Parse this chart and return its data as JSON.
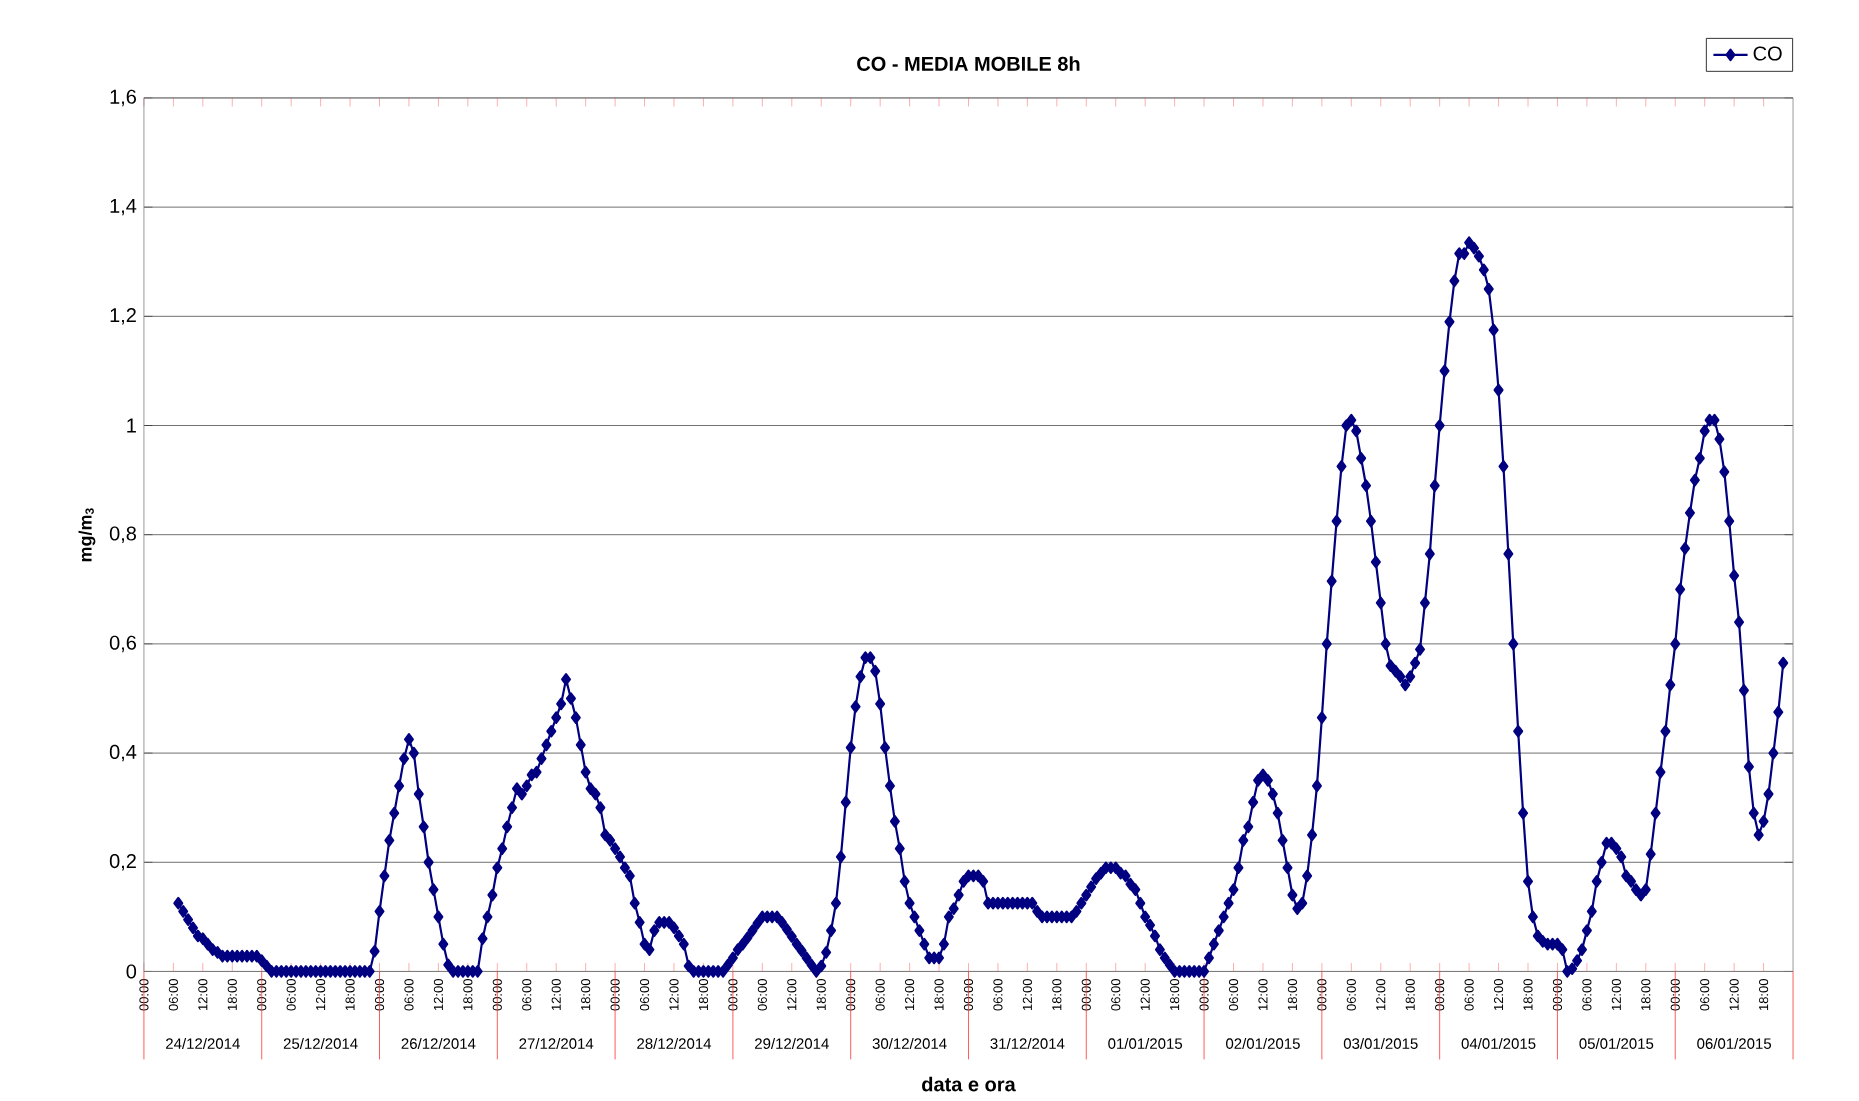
{
  "chart_data": {
    "type": "line",
    "title": "CO - MEDIA MOBILE 8h",
    "xlabel": "data e ora",
    "ylabel": "mg/m$_{3}$",
    "x": [
      "2014-12-24T07:00",
      "2014-12-24T08:00",
      "2014-12-24T09:00",
      "2014-12-24T10:00",
      "2014-12-24T11:00",
      "2014-12-24T12:00",
      "2014-12-24T13:00",
      "2014-12-24T14:00",
      "2014-12-24T15:00",
      "2014-12-24T16:00",
      "2014-12-24T17:00",
      "2014-12-24T18:00",
      "2014-12-24T19:00",
      "2014-12-24T20:00",
      "2014-12-24T21:00",
      "2014-12-24T22:00",
      "2014-12-24T23:00",
      "2014-12-25T00:00",
      "2014-12-25T01:00",
      "2014-12-25T02:00",
      "2014-12-25T03:00",
      "2014-12-25T04:00",
      "2014-12-25T05:00",
      "2014-12-25T06:00",
      "2014-12-25T07:00",
      "2014-12-25T08:00",
      "2014-12-25T09:00",
      "2014-12-25T10:00",
      "2014-12-25T11:00",
      "2014-12-25T12:00",
      "2014-12-25T13:00",
      "2014-12-25T14:00",
      "2014-12-25T15:00",
      "2014-12-25T16:00",
      "2014-12-25T17:00",
      "2014-12-25T18:00",
      "2014-12-25T19:00",
      "2014-12-25T20:00",
      "2014-12-25T21:00",
      "2014-12-25T22:00",
      "2014-12-25T23:00",
      "2014-12-26T00:00",
      "2014-12-26T01:00",
      "2014-12-26T02:00",
      "2014-12-26T03:00",
      "2014-12-26T04:00",
      "2014-12-26T05:00",
      "2014-12-26T06:00",
      "2014-12-26T07:00",
      "2014-12-26T08:00",
      "2014-12-26T09:00",
      "2014-12-26T10:00",
      "2014-12-26T11:00",
      "2014-12-26T12:00",
      "2014-12-26T13:00",
      "2014-12-26T14:00",
      "2014-12-26T15:00",
      "2014-12-26T16:00",
      "2014-12-26T17:00",
      "2014-12-26T18:00",
      "2014-12-26T19:00",
      "2014-12-26T20:00",
      "2014-12-26T21:00",
      "2014-12-26T22:00",
      "2014-12-26T23:00",
      "2014-12-27T00:00",
      "2014-12-27T01:00",
      "2014-12-27T02:00",
      "2014-12-27T03:00",
      "2014-12-27T04:00",
      "2014-12-27T05:00",
      "2014-12-27T06:00",
      "2014-12-27T07:00",
      "2014-12-27T08:00",
      "2014-12-27T09:00",
      "2014-12-27T10:00",
      "2014-12-27T11:00",
      "2014-12-27T12:00",
      "2014-12-27T13:00",
      "2014-12-27T14:00",
      "2014-12-27T15:00",
      "2014-12-27T16:00",
      "2014-12-27T17:00",
      "2014-12-27T18:00",
      "2014-12-27T19:00",
      "2014-12-27T20:00",
      "2014-12-27T21:00",
      "2014-12-27T22:00",
      "2014-12-27T23:00",
      "2014-12-28T00:00",
      "2014-12-28T01:00",
      "2014-12-28T02:00",
      "2014-12-28T03:00",
      "2014-12-28T04:00",
      "2014-12-28T05:00",
      "2014-12-28T06:00",
      "2014-12-28T07:00",
      "2014-12-28T08:00",
      "2014-12-28T09:00",
      "2014-12-28T10:00",
      "2014-12-28T11:00",
      "2014-12-28T12:00",
      "2014-12-28T13:00",
      "2014-12-28T14:00",
      "2014-12-28T15:00",
      "2014-12-28T16:00",
      "2014-12-28T17:00",
      "2014-12-28T18:00",
      "2014-12-28T19:00",
      "2014-12-28T20:00",
      "2014-12-28T21:00",
      "2014-12-28T22:00",
      "2014-12-28T23:00",
      "2014-12-29T00:00",
      "2014-12-29T01:00",
      "2014-12-29T02:00",
      "2014-12-29T03:00",
      "2014-12-29T04:00",
      "2014-12-29T05:00",
      "2014-12-29T06:00",
      "2014-12-29T07:00",
      "2014-12-29T08:00",
      "2014-12-29T09:00",
      "2014-12-29T10:00",
      "2014-12-29T11:00",
      "2014-12-29T12:00",
      "2014-12-29T13:00",
      "2014-12-29T14:00",
      "2014-12-29T15:00",
      "2014-12-29T16:00",
      "2014-12-29T17:00",
      "2014-12-29T18:00",
      "2014-12-29T19:00",
      "2014-12-29T20:00",
      "2014-12-29T21:00",
      "2014-12-29T22:00",
      "2014-12-29T23:00",
      "2014-12-30T00:00",
      "2014-12-30T01:00",
      "2014-12-30T02:00",
      "2014-12-30T03:00",
      "2014-12-30T04:00",
      "2014-12-30T05:00",
      "2014-12-30T06:00",
      "2014-12-30T07:00",
      "2014-12-30T08:00",
      "2014-12-30T09:00",
      "2014-12-30T10:00",
      "2014-12-30T11:00",
      "2014-12-30T12:00",
      "2014-12-30T13:00",
      "2014-12-30T14:00",
      "2014-12-30T15:00",
      "2014-12-30T16:00",
      "2014-12-30T17:00",
      "2014-12-30T18:00",
      "2014-12-30T19:00",
      "2014-12-30T20:00",
      "2014-12-30T21:00",
      "2014-12-30T22:00",
      "2014-12-30T23:00",
      "2014-12-31T00:00",
      "2014-12-31T01:00",
      "2014-12-31T02:00",
      "2014-12-31T03:00",
      "2014-12-31T04:00",
      "2014-12-31T05:00",
      "2014-12-31T06:00",
      "2014-12-31T07:00",
      "2014-12-31T08:00",
      "2014-12-31T09:00",
      "2014-12-31T10:00",
      "2014-12-31T11:00",
      "2014-12-31T12:00",
      "2014-12-31T13:00",
      "2014-12-31T14:00",
      "2014-12-31T15:00",
      "2014-12-31T16:00",
      "2014-12-31T17:00",
      "2014-12-31T18:00",
      "2014-12-31T19:00",
      "2014-12-31T20:00",
      "2014-12-31T21:00",
      "2014-12-31T22:00",
      "2014-12-31T23:00",
      "2015-01-01T00:00",
      "2015-01-01T01:00",
      "2015-01-01T02:00",
      "2015-01-01T03:00",
      "2015-01-01T04:00",
      "2015-01-01T05:00",
      "2015-01-01T06:00",
      "2015-01-01T07:00",
      "2015-01-01T08:00",
      "2015-01-01T09:00",
      "2015-01-01T10:00",
      "2015-01-01T11:00",
      "2015-01-01T12:00",
      "2015-01-01T13:00",
      "2015-01-01T14:00",
      "2015-01-01T15:00",
      "2015-01-01T16:00",
      "2015-01-01T17:00",
      "2015-01-01T18:00",
      "2015-01-01T19:00",
      "2015-01-01T20:00",
      "2015-01-01T21:00",
      "2015-01-01T22:00",
      "2015-01-01T23:00",
      "2015-01-02T00:00",
      "2015-01-02T01:00",
      "2015-01-02T02:00",
      "2015-01-02T03:00",
      "2015-01-02T04:00",
      "2015-01-02T05:00",
      "2015-01-02T06:00",
      "2015-01-02T07:00",
      "2015-01-02T08:00",
      "2015-01-02T09:00",
      "2015-01-02T10:00",
      "2015-01-02T11:00",
      "2015-01-02T12:00",
      "2015-01-02T13:00",
      "2015-01-02T14:00",
      "2015-01-02T15:00",
      "2015-01-02T16:00",
      "2015-01-02T17:00",
      "2015-01-02T18:00",
      "2015-01-02T19:00",
      "2015-01-02T20:00",
      "2015-01-02T21:00",
      "2015-01-02T22:00",
      "2015-01-02T23:00",
      "2015-01-03T00:00",
      "2015-01-03T01:00",
      "2015-01-03T02:00",
      "2015-01-03T03:00",
      "2015-01-03T04:00",
      "2015-01-03T05:00",
      "2015-01-03T06:00",
      "2015-01-03T07:00",
      "2015-01-03T08:00",
      "2015-01-03T09:00",
      "2015-01-03T10:00",
      "2015-01-03T11:00",
      "2015-01-03T12:00",
      "2015-01-03T13:00",
      "2015-01-03T14:00",
      "2015-01-03T15:00",
      "2015-01-03T16:00",
      "2015-01-03T17:00",
      "2015-01-03T18:00",
      "2015-01-03T19:00",
      "2015-01-03T20:00",
      "2015-01-03T21:00",
      "2015-01-03T22:00",
      "2015-01-03T23:00",
      "2015-01-04T00:00",
      "2015-01-04T01:00",
      "2015-01-04T02:00",
      "2015-01-04T03:00",
      "2015-01-04T04:00",
      "2015-01-04T05:00",
      "2015-01-04T06:00",
      "2015-01-04T07:00",
      "2015-01-04T08:00",
      "2015-01-04T09:00",
      "2015-01-04T10:00",
      "2015-01-04T11:00",
      "2015-01-04T12:00",
      "2015-01-04T13:00",
      "2015-01-04T14:00",
      "2015-01-04T15:00",
      "2015-01-04T16:00",
      "2015-01-04T17:00",
      "2015-01-04T18:00",
      "2015-01-04T19:00",
      "2015-01-04T20:00",
      "2015-01-04T21:00",
      "2015-01-04T22:00",
      "2015-01-04T23:00",
      "2015-01-05T00:00",
      "2015-01-05T01:00",
      "2015-01-05T02:00",
      "2015-01-05T03:00",
      "2015-01-05T04:00",
      "2015-01-05T05:00",
      "2015-01-05T06:00",
      "2015-01-05T07:00",
      "2015-01-05T08:00",
      "2015-01-05T09:00",
      "2015-01-05T10:00",
      "2015-01-05T11:00",
      "2015-01-05T12:00",
      "2015-01-05T13:00",
      "2015-01-05T14:00",
      "2015-01-05T15:00",
      "2015-01-05T16:00",
      "2015-01-05T17:00",
      "2015-01-05T18:00",
      "2015-01-05T19:00",
      "2015-01-05T20:00",
      "2015-01-05T21:00",
      "2015-01-05T22:00",
      "2015-01-05T23:00",
      "2015-01-06T00:00",
      "2015-01-06T01:00",
      "2015-01-06T02:00",
      "2015-01-06T03:00",
      "2015-01-06T04:00",
      "2015-01-06T05:00",
      "2015-01-06T06:00",
      "2015-01-06T07:00",
      "2015-01-06T08:00",
      "2015-01-06T09:00",
      "2015-01-06T10:00",
      "2015-01-06T11:00",
      "2015-01-06T12:00",
      "2015-01-06T13:00",
      "2015-01-06T14:00",
      "2015-01-06T15:00",
      "2015-01-06T16:00",
      "2015-01-06T17:00",
      "2015-01-06T18:00",
      "2015-01-06T19:00",
      "2015-01-06T20:00",
      "2015-01-06T21:00",
      "2015-01-06T22:00"
    ],
    "series": [
      {
        "name": "CO",
        "color": "#000080",
        "values": [
          0.125,
          0.11,
          0.095,
          0.08,
          0.065,
          0.06,
          0.05,
          0.04,
          0.035,
          0.028,
          0.028,
          0.028,
          0.028,
          0.028,
          0.028,
          0.028,
          0.028,
          0.02,
          0.01,
          0,
          0,
          0,
          0,
          0,
          0,
          0,
          0,
          0,
          0,
          0,
          0,
          0,
          0,
          0,
          0,
          0,
          0,
          0,
          0,
          0,
          0.037,
          0.11,
          0.175,
          0.24,
          0.29,
          0.34,
          0.39,
          0.425,
          0.4,
          0.325,
          0.265,
          0.2,
          0.15,
          0.1,
          0.05,
          0.012,
          0,
          0,
          0,
          0,
          0,
          0,
          0.06,
          0.1,
          0.14,
          0.19,
          0.225,
          0.265,
          0.3,
          0.335,
          0.325,
          0.34,
          0.36,
          0.365,
          0.39,
          0.415,
          0.44,
          0.465,
          0.49,
          0.535,
          0.5,
          0.465,
          0.415,
          0.365,
          0.335,
          0.325,
          0.3,
          0.25,
          0.24,
          0.225,
          0.21,
          0.19,
          0.175,
          0.125,
          0.09,
          0.05,
          0.04,
          0.075,
          0.09,
          0.09,
          0.09,
          0.08,
          0.065,
          0.05,
          0.01,
          0,
          0,
          0,
          0,
          0,
          0,
          0,
          0.012,
          0.025,
          0.04,
          0.05,
          0.062,
          0.075,
          0.088,
          0.1,
          0.1,
          0.1,
          0.1,
          0.09,
          0.077,
          0.064,
          0.05,
          0.038,
          0.025,
          0.012,
          0,
          0.01,
          0.035,
          0.075,
          0.125,
          0.21,
          0.31,
          0.41,
          0.485,
          0.54,
          0.575,
          0.575,
          0.55,
          0.49,
          0.41,
          0.34,
          0.275,
          0.225,
          0.165,
          0.125,
          0.1,
          0.075,
          0.05,
          0.025,
          0.025,
          0.025,
          0.05,
          0.1,
          0.115,
          0.14,
          0.165,
          0.175,
          0.175,
          0.175,
          0.165,
          0.125,
          0.125,
          0.125,
          0.125,
          0.125,
          0.125,
          0.125,
          0.125,
          0.125,
          0.125,
          0.11,
          0.1,
          0.1,
          0.1,
          0.1,
          0.1,
          0.1,
          0.1,
          0.11,
          0.125,
          0.14,
          0.155,
          0.17,
          0.18,
          0.19,
          0.19,
          0.19,
          0.18,
          0.175,
          0.16,
          0.15,
          0.125,
          0.1,
          0.085,
          0.065,
          0.04,
          0.025,
          0.012,
          0,
          0,
          0,
          0,
          0,
          0,
          0,
          0.025,
          0.05,
          0.075,
          0.1,
          0.125,
          0.15,
          0.19,
          0.24,
          0.265,
          0.31,
          0.35,
          0.36,
          0.35,
          0.325,
          0.29,
          0.24,
          0.19,
          0.14,
          0.115,
          0.125,
          0.175,
          0.25,
          0.34,
          0.465,
          0.6,
          0.715,
          0.825,
          0.925,
          1.0,
          1.01,
          0.99,
          0.94,
          0.89,
          0.825,
          0.75,
          0.675,
          0.6,
          0.56,
          0.55,
          0.54,
          0.525,
          0.54,
          0.565,
          0.59,
          0.675,
          0.765,
          0.89,
          1.0,
          1.1,
          1.19,
          1.265,
          1.315,
          1.315,
          1.335,
          1.325,
          1.31,
          1.285,
          1.25,
          1.175,
          1.065,
          0.925,
          0.765,
          0.6,
          0.44,
          0.29,
          0.165,
          0.1,
          0.065,
          0.055,
          0.05,
          0.05,
          0.05,
          0.04,
          0,
          0.005,
          0.02,
          0.04,
          0.075,
          0.11,
          0.165,
          0.2,
          0.235,
          0.235,
          0.225,
          0.21,
          0.175,
          0.165,
          0.15,
          0.14,
          0.15,
          0.215,
          0.29,
          0.365,
          0.44,
          0.525,
          0.6,
          0.7,
          0.775,
          0.84,
          0.9,
          0.94,
          0.99,
          1.01,
          1.01,
          0.975,
          0.915,
          0.825,
          0.725,
          0.64,
          0.515,
          0.375,
          0.29,
          0.25,
          0.275,
          0.325,
          0.4,
          0.475,
          0.565
        ]
      }
    ],
    "xlim": [
      "2014-12-24T00:00",
      "2015-01-07T00:00"
    ],
    "xticks": [
      {
        "value": "2014-12-24T00:00",
        "label": "00:00"
      },
      {
        "value": "2014-12-24T06:00",
        "label": "06:00"
      },
      {
        "value": "2014-12-24T12:00",
        "label": "12:00"
      },
      {
        "value": "2014-12-24T18:00",
        "label": "18:00"
      },
      {
        "value": "2014-12-25T00:00",
        "label": "00:00"
      },
      {
        "value": "2014-12-25T06:00",
        "label": "06:00"
      },
      {
        "value": "2014-12-25T12:00",
        "label": "12:00"
      },
      {
        "value": "2014-12-25T18:00",
        "label": "18:00"
      },
      {
        "value": "2014-12-26T00:00",
        "label": "00:00"
      },
      {
        "value": "2014-12-26T06:00",
        "label": "06:00"
      },
      {
        "value": "2014-12-26T12:00",
        "label": "12:00"
      },
      {
        "value": "2014-12-26T18:00",
        "label": "18:00"
      },
      {
        "value": "2014-12-27T00:00",
        "label": "00:00"
      },
      {
        "value": "2014-12-27T06:00",
        "label": "06:00"
      },
      {
        "value": "2014-12-27T12:00",
        "label": "12:00"
      },
      {
        "value": "2014-12-27T18:00",
        "label": "18:00"
      },
      {
        "value": "2014-12-28T00:00",
        "label": "00:00"
      },
      {
        "value": "2014-12-28T06:00",
        "label": "06:00"
      },
      {
        "value": "2014-12-28T12:00",
        "label": "12:00"
      },
      {
        "value": "2014-12-28T18:00",
        "label": "18:00"
      },
      {
        "value": "2014-12-29T00:00",
        "label": "00:00"
      },
      {
        "value": "2014-12-29T06:00",
        "label": "06:00"
      },
      {
        "value": "2014-12-29T12:00",
        "label": "12:00"
      },
      {
        "value": "2014-12-29T18:00",
        "label": "18:00"
      },
      {
        "value": "2014-12-30T00:00",
        "label": "00:00"
      },
      {
        "value": "2014-12-30T06:00",
        "label": "06:00"
      },
      {
        "value": "2014-12-30T12:00",
        "label": "12:00"
      },
      {
        "value": "2014-12-30T18:00",
        "label": "18:00"
      },
      {
        "value": "2014-12-31T00:00",
        "label": "00:00"
      },
      {
        "value": "2014-12-31T06:00",
        "label": "06:00"
      },
      {
        "value": "2014-12-31T12:00",
        "label": "12:00"
      },
      {
        "value": "2014-12-31T18:00",
        "label": "18:00"
      },
      {
        "value": "2015-01-01T00:00",
        "label": "00:00"
      },
      {
        "value": "2015-01-01T06:00",
        "label": "06:00"
      },
      {
        "value": "2015-01-01T12:00",
        "label": "12:00"
      },
      {
        "value": "2015-01-01T18:00",
        "label": "18:00"
      },
      {
        "value": "2015-01-02T00:00",
        "label": "00:00"
      },
      {
        "value": "2015-01-02T06:00",
        "label": "06:00"
      },
      {
        "value": "2015-01-02T12:00",
        "label": "12:00"
      },
      {
        "value": "2015-01-02T18:00",
        "label": "18:00"
      },
      {
        "value": "2015-01-03T00:00",
        "label": "00:00"
      },
      {
        "value": "2015-01-03T06:00",
        "label": "06:00"
      },
      {
        "value": "2015-01-03T12:00",
        "label": "12:00"
      },
      {
        "value": "2015-01-03T18:00",
        "label": "18:00"
      },
      {
        "value": "2015-01-04T00:00",
        "label": "00:00"
      },
      {
        "value": "2015-01-04T06:00",
        "label": "06:00"
      },
      {
        "value": "2015-01-04T12:00",
        "label": "12:00"
      },
      {
        "value": "2015-01-04T18:00",
        "label": "18:00"
      },
      {
        "value": "2015-01-05T00:00",
        "label": "00:00"
      },
      {
        "value": "2015-01-05T06:00",
        "label": "06:00"
      },
      {
        "value": "2015-01-05T12:00",
        "label": "12:00"
      },
      {
        "value": "2015-01-05T18:00",
        "label": "18:00"
      },
      {
        "value": "2015-01-06T00:00",
        "label": "00:00"
      },
      {
        "value": "2015-01-06T06:00",
        "label": "06:00"
      },
      {
        "value": "2015-01-06T12:00",
        "label": "12:00"
      },
      {
        "value": "2015-01-06T18:00",
        "label": "18:00"
      }
    ],
    "ylim": [
      0,
      1.6
    ],
    "yticks": [
      0,
      {
        "value": 0.2,
        "label": "0,2"
      },
      {
        "value": 0.4,
        "label": "0,4"
      },
      {
        "value": 0.6,
        "label": "0,6"
      },
      {
        "value": 0.8,
        "label": "0,8"
      },
      1,
      {
        "value": 1.2,
        "label": "1,2"
      },
      {
        "value": 1.4,
        "label": "1,4"
      },
      {
        "value": 1.6,
        "label": "1,6"
      }
    ],
    "annotations": [
      "24/12/2014",
      "25/12/2014",
      "26/12/2014",
      "27/12/2014",
      "28/12/2014",
      "29/12/2014",
      "30/12/2014",
      "31/12/2014",
      "01/01/2015",
      "02/01/2015",
      "03/01/2015",
      "04/01/2015",
      "05/01/2015",
      "06/01/2015"
    ],
    "grid": "y",
    "legend": "top right",
    "marker": "diamond",
    "line_style": "solid"
  }
}
